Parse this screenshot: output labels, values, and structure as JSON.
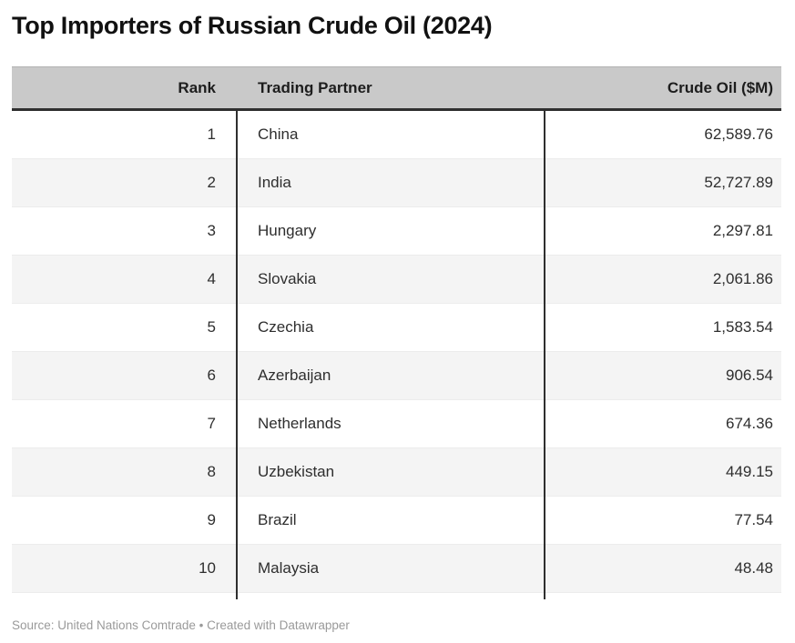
{
  "title": "Top Importers of Russian Crude Oil (2024)",
  "table": {
    "columns": [
      {
        "key": "rank",
        "label": "Rank"
      },
      {
        "key": "partner",
        "label": "Trading Partner"
      },
      {
        "key": "value",
        "label": "Crude Oil ($M)"
      }
    ],
    "rows": [
      {
        "rank": "1",
        "partner": "China",
        "value": "62,589.76"
      },
      {
        "rank": "2",
        "partner": "India",
        "value": "52,727.89"
      },
      {
        "rank": "3",
        "partner": "Hungary",
        "value": "2,297.81"
      },
      {
        "rank": "4",
        "partner": "Slovakia",
        "value": "2,061.86"
      },
      {
        "rank": "5",
        "partner": "Czechia",
        "value": "1,583.54"
      },
      {
        "rank": "6",
        "partner": "Azerbaijan",
        "value": "906.54"
      },
      {
        "rank": "7",
        "partner": "Netherlands",
        "value": "674.36"
      },
      {
        "rank": "8",
        "partner": "Uzbekistan",
        "value": "449.15"
      },
      {
        "rank": "9",
        "partner": "Brazil",
        "value": "77.54"
      },
      {
        "rank": "10",
        "partner": "Malaysia",
        "value": "48.48"
      }
    ]
  },
  "footer": {
    "text": "Source: United Nations Comtrade • Created with Datawrapper"
  },
  "colors": {
    "header_bg": "#c9c9c9",
    "header_text": "#1d1d1d",
    "row_alt_bg": "#f4f4f4",
    "rule_dark": "#2f2f2f",
    "body_text": "#2e2e2e",
    "title_text": "#111111",
    "footer_text": "#9a9a9a"
  },
  "chart_data": {
    "type": "table",
    "title": "Top Importers of Russian Crude Oil (2024)",
    "columns": [
      "Rank",
      "Trading Partner",
      "Crude Oil ($M)"
    ],
    "rows": [
      [
        1,
        "China",
        62589.76
      ],
      [
        2,
        "India",
        52727.89
      ],
      [
        3,
        "Hungary",
        2297.81
      ],
      [
        4,
        "Slovakia",
        2061.86
      ],
      [
        5,
        "Czechia",
        1583.54
      ],
      [
        6,
        "Azerbaijan",
        906.54
      ],
      [
        7,
        "Netherlands",
        674.36
      ],
      [
        8,
        "Uzbekistan",
        449.15
      ],
      [
        9,
        "Brazil",
        77.54
      ],
      [
        10,
        "Malaysia",
        48.48
      ]
    ],
    "value_unit": "million USD",
    "source": "United Nations Comtrade",
    "credit": "Created with Datawrapper",
    "layout_hints": {
      "zebra_striping": true,
      "rank_column_align": "right",
      "partner_column_align": "left",
      "value_column_align": "right",
      "column_dividers": "dark vertical rules between columns in body only"
    }
  }
}
